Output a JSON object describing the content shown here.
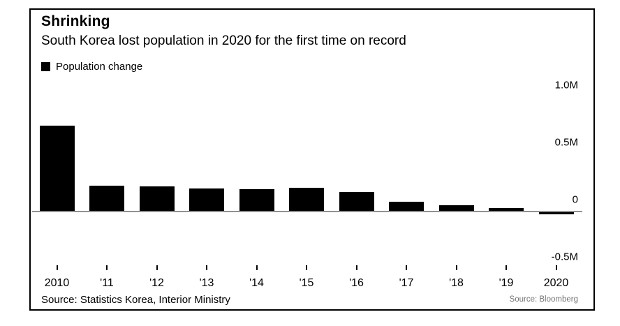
{
  "header": {
    "title": "Shrinking",
    "subtitle": "South Korea lost population in 2020 for the first time on record"
  },
  "legend": {
    "label": "Population change",
    "swatch_color": "#000000"
  },
  "chart_data": {
    "type": "bar",
    "title": "Shrinking",
    "subtitle": "South Korea lost population in 2020 for the first time on record",
    "series_name": "Population change",
    "categories": [
      "2010",
      "'11",
      "'12",
      "'13",
      "'14",
      "'15",
      "'16",
      "'17",
      "'18",
      "'19",
      "2020"
    ],
    "values": [
      0.743,
      0.219,
      0.214,
      0.193,
      0.186,
      0.201,
      0.167,
      0.082,
      0.048,
      0.024,
      -0.021
    ],
    "units": "millions of people",
    "xlabel": "",
    "ylabel": "",
    "ylim": [
      -0.5,
      1.0
    ],
    "yticks": [
      {
        "label": "1.0M",
        "value": 1.0
      },
      {
        "label": "0.5M",
        "value": 0.5
      },
      {
        "label": "0",
        "value": 0.0
      },
      {
        "label": "-0.5M",
        "value": -0.5
      }
    ],
    "grid": false,
    "legend_position": "top-left",
    "bar_color": "#000000",
    "baseline_color": "#919191"
  },
  "footer": {
    "source_left": "Source: Statistics Korea, Interior Ministry",
    "source_right": "Source: Bloomberg"
  }
}
